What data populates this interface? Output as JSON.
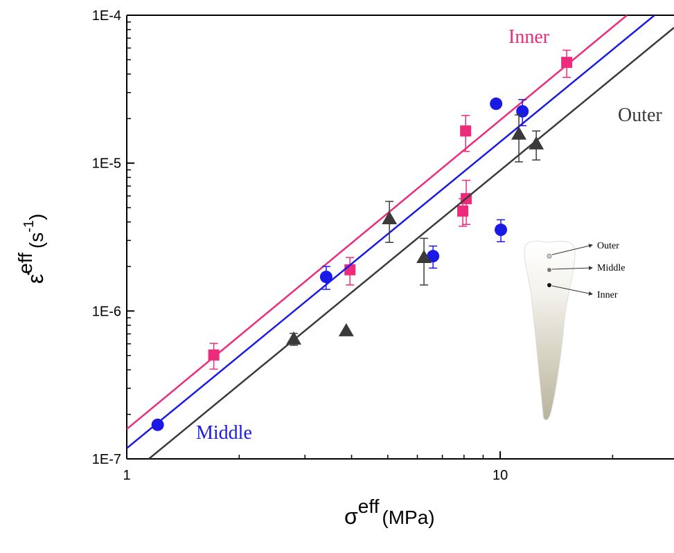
{
  "chart_data": {
    "type": "scatter",
    "xlabel": {
      "symbol": "σ",
      "sup": "eff",
      "unit": "(MPa)"
    },
    "ylabel": {
      "symbol": "ε̇",
      "sup": "eff",
      "unit": "(s",
      "unit_sup": "-1",
      "unit_end": ")"
    },
    "log_x": true,
    "log_y": true,
    "xlim": [
      1,
      29.2
    ],
    "ylim": [
      1e-07,
      0.0001
    ],
    "xticks": [
      1,
      10
    ],
    "yticks": [
      {
        "value": 1e-07,
        "label": "1E-7"
      },
      {
        "value": 1e-06,
        "label": "1E-6"
      },
      {
        "value": 1e-05,
        "label": "1E-5"
      },
      {
        "value": 0.0001,
        "label": "1E-4"
      }
    ],
    "series": [
      {
        "name": "Inner",
        "color": "#ee2a7b",
        "marker": "square",
        "x": [
          1.71,
          3.96,
          7.94,
          8.11,
          8.08,
          15.07
        ],
        "values": [
          5.04e-07,
          1.9e-06,
          4.74e-06,
          5.75e-06,
          1.65e-05,
          4.8e-05
        ],
        "errors": [
          1e-07,
          4e-07,
          1e-06,
          1.9e-06,
          4.5e-06,
          1e-05
        ],
        "fit": {
          "x": [
            1,
            21.85
          ],
          "values": [
            1.59e-07,
            0.0001
          ]
        }
      },
      {
        "name": "Middle",
        "color": "#1a1ae6",
        "marker": "circle",
        "x": [
          1.21,
          3.42,
          6.61,
          9.75,
          11.47,
          10.04
        ],
        "values": [
          1.7e-07,
          1.7e-06,
          2.35e-06,
          2.52e-05,
          2.24e-05,
          3.54e-06
        ],
        "errors": [
          null,
          3e-07,
          4e-07,
          null,
          4.5e-06,
          6e-07
        ],
        "fit": {
          "x": [
            1,
            25.9
          ],
          "values": [
            1.18e-07,
            0.0001
          ]
        }
      },
      {
        "name": "Outer",
        "color": "#3a3a3a",
        "marker": "triangle",
        "x": [
          2.8,
          3.87,
          5.05,
          6.25,
          11.22,
          12.49
        ],
        "values": [
          6.46e-07,
          7.35e-07,
          4.21e-06,
          2.3e-06,
          1.57e-05,
          1.35e-05
        ],
        "errors": [
          6e-08,
          null,
          1.3e-06,
          8e-07,
          5.5e-06,
          3e-06
        ],
        "fit": {
          "x": [
            1.146,
            29.2
          ],
          "values": [
            1e-07,
            8.24e-05
          ]
        }
      }
    ]
  },
  "inset": {
    "labels": [
      "Outer",
      "Middle",
      "Inner"
    ]
  }
}
